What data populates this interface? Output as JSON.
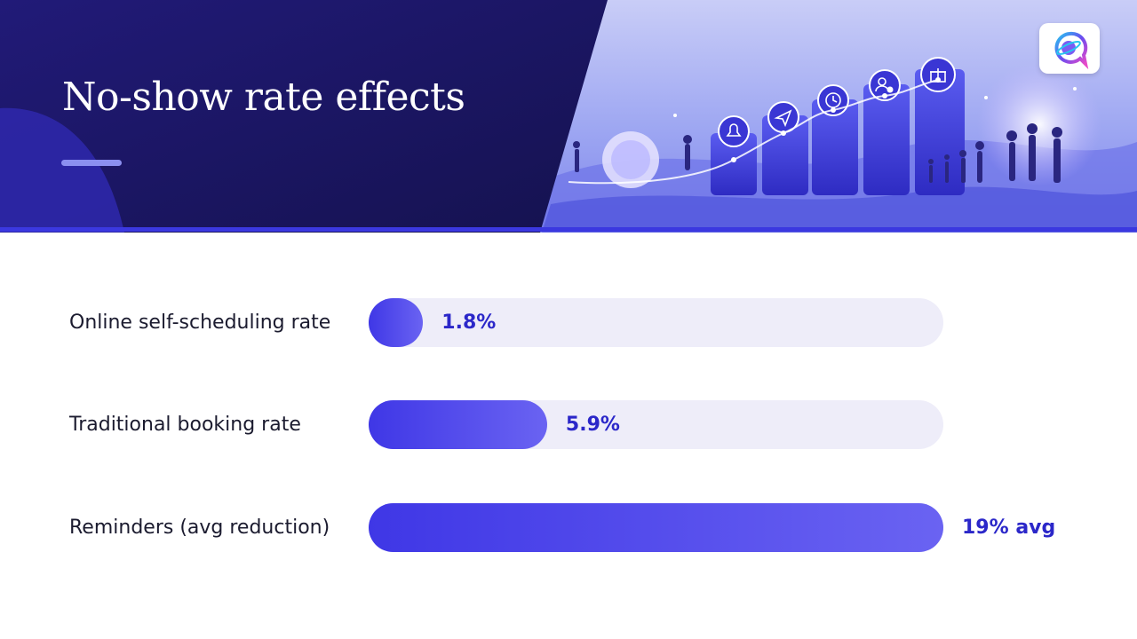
{
  "header": {
    "title": "No-show rate effects"
  },
  "colors": {
    "header_dark": "#1a1660",
    "accent": "#3b38e0",
    "bar_start": "#3f37e6",
    "bar_end": "#6a63f2",
    "track": "#eeedf9",
    "value_text": "#2b27c9"
  },
  "icons": [
    "bell-icon",
    "paper-plane-icon",
    "clock-icon",
    "user-check-icon",
    "gift-icon",
    "chat-logo-icon"
  ],
  "chart_data": {
    "type": "bar",
    "orientation": "horizontal",
    "categories": [
      "Online self-scheduling rate",
      "Traditional booking rate",
      "Reminders (avg reduction)"
    ],
    "values": [
      1.8,
      5.9,
      19
    ],
    "value_labels": [
      "1.8%",
      "5.9%",
      "19% avg"
    ],
    "xlim": [
      0,
      19
    ],
    "grid": false,
    "legend": "none"
  }
}
